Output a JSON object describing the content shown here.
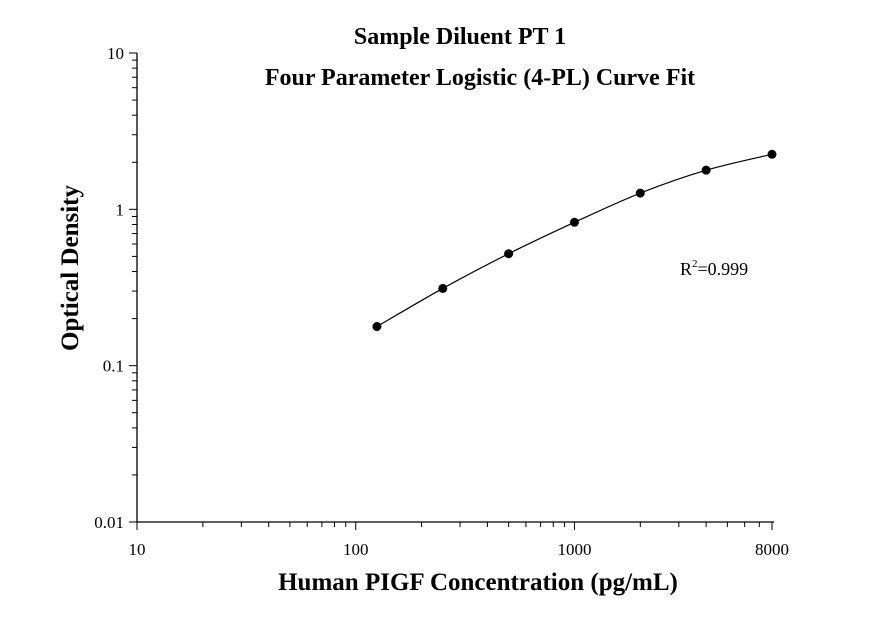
{
  "chart_data": {
    "type": "scatter",
    "title": "Sample Diluent PT 1",
    "subtitle": "Four Parameter Logistic (4-PL) Curve Fit",
    "xlabel": "Human PIGF Concentration (pg/mL)",
    "ylabel": "Optical Density",
    "x_scale": "log",
    "y_scale": "log",
    "xlim": [
      10,
      8000
    ],
    "ylim": [
      0.01,
      10
    ],
    "x_ticks": [
      "10",
      "100",
      "1000",
      "8000"
    ],
    "y_ticks": [
      "10",
      "1",
      "0.1",
      "0.01"
    ],
    "grid": false,
    "fit_curve": "4-PL",
    "annotation": {
      "base": "R",
      "sup": "2",
      "rest": "=0.999"
    },
    "series": [
      {
        "x": [
          125,
          250,
          500,
          1000,
          2000,
          4000,
          8000
        ],
        "y": [
          0.178,
          0.312,
          0.52,
          0.826,
          1.27,
          1.78,
          2.25
        ]
      }
    ],
    "colors": {
      "points": "#000000",
      "line": "#000000"
    }
  }
}
